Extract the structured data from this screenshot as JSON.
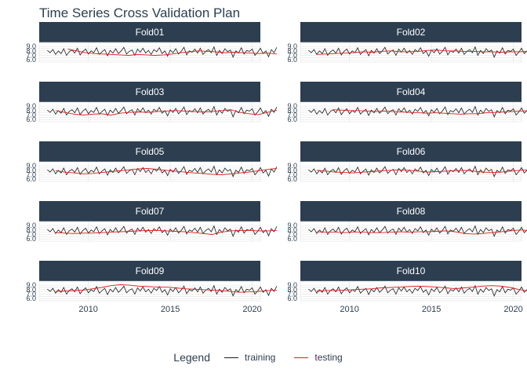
{
  "chart_data": {
    "type": "line",
    "title": "Time Series Cross Validation Plan",
    "xlabel": "",
    "ylabel": "",
    "xlim": [
      2007,
      2020.5
    ],
    "ylim": [
      5.5,
      9.9
    ],
    "x_ticks": [
      2010,
      2015,
      2020
    ],
    "y_ticks": [
      6.0,
      6.5,
      7.0,
      7.5,
      8.0,
      8.5,
      9.0
    ],
    "y_tick_labels": [
      "6.0",
      "7.0",
      "8.0",
      "9.0"
    ],
    "grid": true,
    "legend": {
      "title": "Legend",
      "position": "bottom",
      "entries": [
        {
          "label": "training",
          "color": "#1b1b1b"
        },
        {
          "label": "testing",
          "color": "#e31a1c"
        }
      ]
    },
    "series_colors": {
      "training": "#1b1b1b",
      "testing": "#e31a1c"
    },
    "panels": [
      {
        "label": "Fold01",
        "test_start": 2008.75,
        "test_values": [
          8.4,
          8.0,
          7.6,
          7.4,
          7.3,
          7.2,
          7.1,
          7.0,
          7.2,
          7.1,
          7.0,
          7.1,
          7.3,
          7.6,
          7.8,
          8.0,
          7.9,
          7.8,
          7.6,
          7.7,
          7.6,
          7.5,
          7.4,
          7.5,
          7.3
        ]
      },
      {
        "label": "Fold02",
        "test_start": 2008.0,
        "test_values": [
          7.2,
          7.3,
          7.4,
          7.5,
          7.6,
          7.8,
          7.7,
          7.9,
          8.0,
          7.8,
          7.8,
          7.9,
          8.1,
          8.2,
          8.0,
          8.0,
          7.9,
          7.9,
          7.8,
          7.8,
          7.7,
          7.8,
          7.8,
          7.9,
          7.9
        ]
      },
      {
        "label": "Fold03",
        "test_start": 2008.0,
        "test_values": [
          8.0,
          7.6,
          7.2,
          7.0,
          7.2,
          7.3,
          7.0,
          7.4,
          7.6,
          7.7,
          7.6,
          7.8,
          7.9,
          8.0,
          7.9,
          7.8,
          7.7,
          7.8,
          8.0,
          8.2,
          7.6,
          7.3,
          7.1,
          7.6,
          8.1
        ]
      },
      {
        "label": "Fold04",
        "test_start": 2009.0,
        "test_values": [
          8.2,
          8.1,
          8.0,
          8.0,
          7.9,
          7.8,
          7.9,
          7.8,
          7.7,
          7.6,
          7.5,
          7.4,
          7.5,
          7.4,
          7.3,
          7.2,
          7.3,
          7.3,
          7.5,
          7.6,
          7.7,
          7.8,
          7.9,
          8.0,
          7.9
        ]
      },
      {
        "label": "Fold05",
        "test_start": 2008.0,
        "test_values": [
          7.9,
          7.6,
          7.4,
          7.2,
          7.3,
          7.5,
          7.7,
          7.9,
          8.1,
          8.3,
          8.4,
          8.2,
          8.0,
          7.8,
          7.6,
          7.4,
          7.3,
          7.1,
          7.0,
          7.2,
          7.4,
          7.6,
          7.9,
          8.2,
          8.4
        ]
      },
      {
        "label": "Fold06",
        "test_start": 2008.0,
        "test_values": [
          8.0,
          7.8,
          7.6,
          7.5,
          7.4,
          7.6,
          7.7,
          7.9,
          8.0,
          8.1,
          8.0,
          7.8,
          7.6,
          7.7,
          7.8,
          7.9,
          8.0,
          7.8,
          7.6,
          7.5,
          7.6,
          7.8,
          8.0,
          8.1,
          8.0
        ]
      },
      {
        "label": "Fold07",
        "test_start": 2008.0,
        "test_values": [
          7.4,
          7.3,
          7.2,
          7.3,
          7.3,
          7.4,
          7.5,
          7.6,
          7.7,
          7.8,
          7.9,
          7.9,
          7.8,
          7.7,
          7.6,
          7.4,
          7.2,
          7.0,
          7.5,
          7.8,
          7.9,
          7.9,
          7.8,
          7.8,
          7.9
        ]
      },
      {
        "label": "Fold08",
        "test_start": 2008.0,
        "test_values": [
          7.6,
          7.5,
          7.5,
          7.4,
          7.5,
          7.5,
          7.4,
          7.4,
          7.5,
          7.6,
          7.5,
          7.6,
          7.6,
          7.7,
          7.8,
          7.6,
          7.2,
          7.1,
          7.2,
          7.4,
          7.6,
          7.8,
          8.0,
          7.9,
          7.6
        ]
      },
      {
        "label": "Fold09",
        "test_start": 2008.0,
        "test_values": [
          7.6,
          7.7,
          7.8,
          7.9,
          8.2,
          8.5,
          8.9,
          9.1,
          9.0,
          8.8,
          8.7,
          8.6,
          8.6,
          8.4,
          8.2,
          8.1,
          8.0,
          7.9,
          7.8,
          7.6,
          7.4,
          7.5,
          7.6,
          7.8,
          7.9
        ]
      },
      {
        "label": "Fold10",
        "test_start": 2008.0,
        "test_values": [
          7.7,
          7.8,
          7.8,
          7.9,
          8.0,
          8.1,
          8.2,
          8.4,
          8.5,
          8.6,
          8.7,
          8.8,
          8.7,
          8.6,
          8.4,
          8.2,
          8.4,
          8.6,
          8.8,
          8.9,
          8.8,
          8.5,
          8.0,
          7.7,
          7.6
        ]
      }
    ],
    "training": {
      "x_start": 2007.5,
      "x_step": 0.1667,
      "values": [
        8.1,
        7.6,
        8.3,
        7.2,
        8.0,
        7.4,
        8.5,
        7.0,
        7.8,
        8.2,
        7.5,
        8.6,
        7.1,
        7.9,
        8.4,
        7.3,
        8.0,
        7.6,
        8.7,
        7.2,
        7.8,
        8.3,
        6.9,
        8.1,
        7.5,
        8.5,
        7.4,
        8.0,
        8.8,
        7.3,
        7.9,
        8.2,
        7.0,
        8.4,
        7.7,
        8.6,
        7.5,
        8.1,
        7.2,
        8.3,
        7.8,
        8.7,
        7.4,
        8.0,
        6.8,
        8.2,
        7.6,
        8.5,
        7.3,
        7.9,
        8.8,
        7.1,
        8.0,
        7.7,
        8.4,
        7.5,
        8.6,
        7.2,
        7.9,
        8.3,
        7.6,
        8.9,
        7.0,
        8.1,
        7.4,
        8.5,
        7.8,
        8.2,
        6.6,
        8.0,
        7.5,
        8.7,
        7.3,
        8.1,
        7.9,
        8.4,
        7.0,
        7.7,
        8.6,
        7.4,
        8.0,
        6.7,
        8.3,
        7.6,
        8.8
      ]
    }
  }
}
